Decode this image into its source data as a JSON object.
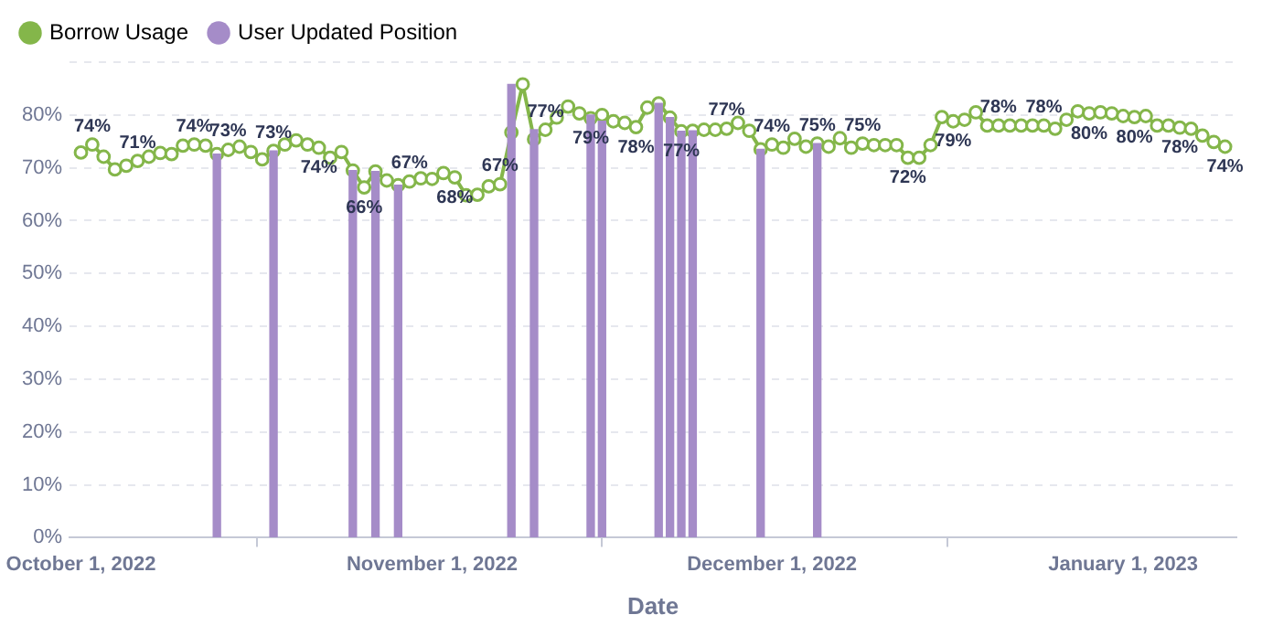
{
  "chart_data": {
    "type": "line",
    "xlabel": "Date",
    "legend": "top left",
    "grid": "y",
    "marker": "circle",
    "x": [
      "2022-10-01",
      "2022-10-02",
      "2022-10-03",
      "2022-10-04",
      "2022-10-05",
      "2022-10-06",
      "2022-10-07",
      "2022-10-08",
      "2022-10-09",
      "2022-10-10",
      "2022-10-11",
      "2022-10-12",
      "2022-10-13",
      "2022-10-14",
      "2022-10-15",
      "2022-10-16",
      "2022-10-17",
      "2022-10-18",
      "2022-10-19",
      "2022-10-20",
      "2022-10-21",
      "2022-10-22",
      "2022-10-23",
      "2022-10-24",
      "2022-10-25",
      "2022-10-26",
      "2022-10-27",
      "2022-10-28",
      "2022-10-29",
      "2022-10-30",
      "2022-10-31",
      "2022-11-01",
      "2022-11-02",
      "2022-11-03",
      "2022-11-04",
      "2022-11-05",
      "2022-11-06",
      "2022-11-07",
      "2022-11-08",
      "2022-11-09",
      "2022-11-10",
      "2022-11-11",
      "2022-11-12",
      "2022-11-13",
      "2022-11-14",
      "2022-11-15",
      "2022-11-16",
      "2022-11-17",
      "2022-11-18",
      "2022-11-19",
      "2022-11-20",
      "2022-11-21",
      "2022-11-22",
      "2022-11-23",
      "2022-11-24",
      "2022-11-25",
      "2022-11-26",
      "2022-11-27",
      "2022-11-28",
      "2022-11-29",
      "2022-11-30",
      "2022-12-01",
      "2022-12-02",
      "2022-12-03",
      "2022-12-04",
      "2022-12-05",
      "2022-12-06",
      "2022-12-07",
      "2022-12-08",
      "2022-12-09",
      "2022-12-10",
      "2022-12-11",
      "2022-12-12",
      "2022-12-13",
      "2022-12-14",
      "2022-12-15",
      "2022-12-16",
      "2022-12-17",
      "2022-12-18",
      "2022-12-19",
      "2022-12-20",
      "2022-12-21",
      "2022-12-22",
      "2022-12-23",
      "2022-12-24",
      "2022-12-25",
      "2022-12-26",
      "2022-12-27",
      "2022-12-28",
      "2022-12-29",
      "2022-12-30",
      "2022-12-31",
      "2023-01-01",
      "2023-01-02",
      "2023-01-03",
      "2023-01-04",
      "2023-01-05",
      "2023-01-06",
      "2023-01-07",
      "2023-01-08",
      "2023-01-09",
      "2023-01-10"
    ],
    "xlim": [
      "2022-09-30",
      "2023-01-11"
    ],
    "xticks": [
      {
        "value": "2022-10-01",
        "label": "October 1, 2022"
      },
      {
        "value": "2022-11-01",
        "label": "November 1, 2022"
      },
      {
        "value": "2022-12-01",
        "label": "December 1, 2022"
      },
      {
        "value": "2023-01-01",
        "label": "January 1, 2023"
      }
    ],
    "ylim": [
      0,
      90
    ],
    "yticks": [
      {
        "value": 0,
        "label": "0%"
      },
      {
        "value": 10,
        "label": "10%"
      },
      {
        "value": 20,
        "label": "20%"
      },
      {
        "value": 30,
        "label": "30%"
      },
      {
        "value": 40,
        "label": "40%"
      },
      {
        "value": 50,
        "label": "50%"
      },
      {
        "value": 60,
        "label": "60%"
      },
      {
        "value": 70,
        "label": "70%"
      },
      {
        "value": 80,
        "label": "80%"
      },
      {
        "value": 90,
        "label": null
      }
    ],
    "series": [
      {
        "name": "Borrow Usage",
        "color": "#84b64a",
        "values": [
          72.9,
          74.4,
          72.1,
          69.7,
          70.4,
          71.3,
          72.1,
          72.8,
          72.6,
          74.2,
          74.4,
          74.2,
          72.6,
          73.4,
          74.0,
          73.0,
          71.6,
          73.2,
          74.4,
          75.2,
          74.4,
          73.8,
          71.9,
          73.0,
          69.5,
          66.3,
          69.3,
          67.6,
          66.7,
          67.4,
          68.0,
          67.9,
          69.0,
          68.2,
          64.8,
          64.9,
          66.5,
          66.9,
          76.7,
          85.8,
          75.4,
          77.2,
          79.5,
          81.6,
          80.3,
          79.4,
          80.0,
          78.8,
          78.5,
          77.7,
          81.4,
          82.2,
          79.5,
          76.9,
          77.0,
          77.2,
          77.2,
          77.4,
          78.5,
          77.0,
          73.5,
          74.4,
          73.8,
          75.5,
          74.0,
          74.6,
          74.0,
          75.6,
          73.8,
          74.6,
          74.3,
          74.3,
          74.3,
          71.9,
          71.9,
          74.3,
          79.6,
          78.8,
          79.1,
          80.5,
          78.0,
          78.0,
          78.0,
          78.0,
          78.0,
          78.0,
          77.4,
          79.1,
          80.7,
          80.3,
          80.5,
          80.3,
          79.8,
          79.6,
          79.8,
          78.0,
          78.0,
          77.6,
          77.4,
          76.1,
          74.9,
          74.0
        ],
        "value_labels": [
          null,
          "74%",
          null,
          null,
          null,
          "71%",
          null,
          null,
          null,
          null,
          "74%",
          null,
          null,
          "73%",
          null,
          null,
          null,
          "73%",
          null,
          null,
          null,
          "74%",
          null,
          null,
          null,
          "66%",
          null,
          null,
          null,
          "67%",
          null,
          null,
          null,
          "68%",
          null,
          null,
          null,
          "67%",
          null,
          null,
          null,
          "77%",
          null,
          null,
          null,
          "79%",
          null,
          null,
          null,
          "78%",
          null,
          null,
          null,
          "77%",
          null,
          null,
          null,
          "77%",
          null,
          null,
          null,
          "74%",
          null,
          null,
          null,
          "75%",
          null,
          null,
          null,
          "75%",
          null,
          null,
          null,
          "72%",
          null,
          null,
          null,
          "79%",
          null,
          null,
          null,
          "78%",
          null,
          null,
          null,
          "78%",
          null,
          null,
          null,
          "80%",
          null,
          null,
          null,
          "80%",
          null,
          null,
          null,
          "78%",
          null,
          null,
          null,
          "74%"
        ]
      },
      {
        "name": "User Updated Position",
        "type": "bar",
        "color": "#a58cc8",
        "x": [
          "2022-10-13",
          "2022-10-18",
          "2022-10-25",
          "2022-10-27",
          "2022-10-29",
          "2022-11-08",
          "2022-11-10",
          "2022-11-15",
          "2022-11-16",
          "2022-11-21",
          "2022-11-22",
          "2022-11-23",
          "2022-11-24",
          "2022-11-30",
          "2022-12-05"
        ],
        "values": [
          72.6,
          73.2,
          69.5,
          69.3,
          66.7,
          85.8,
          77.2,
          80.0,
          78.8,
          82.2,
          79.5,
          76.9,
          77.0,
          73.5,
          74.6
        ]
      }
    ]
  }
}
